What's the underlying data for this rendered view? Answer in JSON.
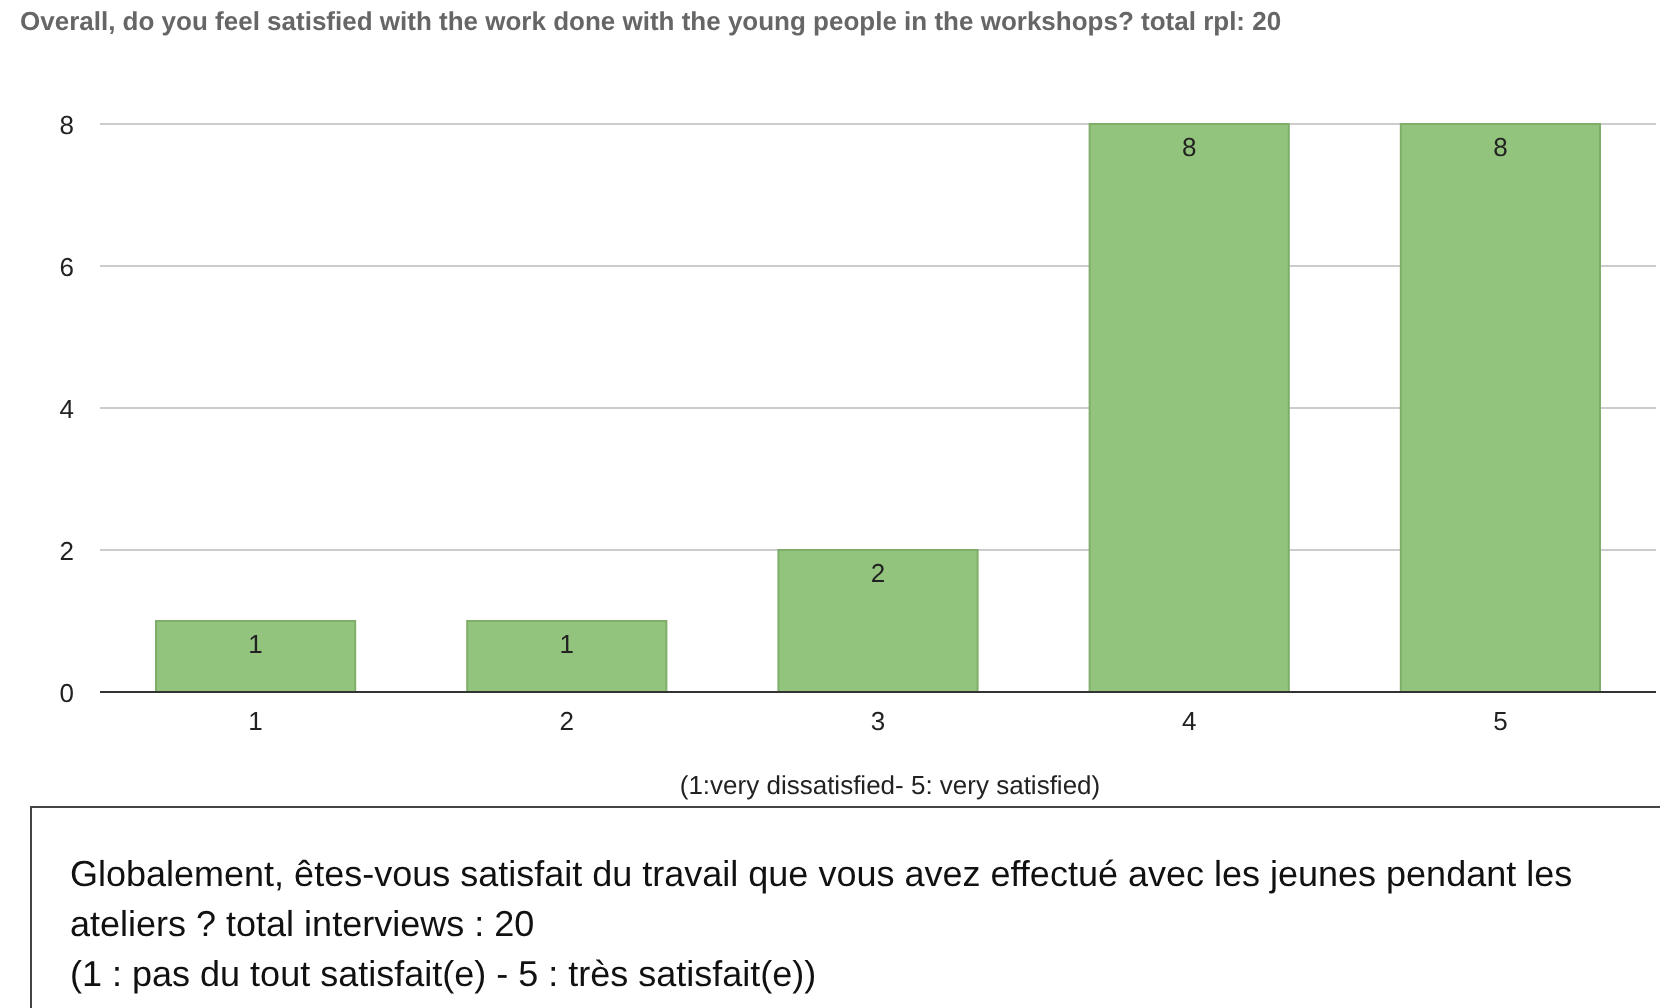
{
  "chart_data": {
    "type": "bar",
    "title": "Overall, do you feel satisfied with the work done with the young people in the workshops? total rpl: 20",
    "xlabel": "(1:very dissatisfied- 5: very satisfied)",
    "categories": [
      "1",
      "2",
      "3",
      "4",
      "5"
    ],
    "values": [
      1,
      1,
      2,
      8,
      8
    ],
    "color": "#93c47d",
    "ylim": [
      0,
      8
    ],
    "yticks": [
      0,
      2,
      4,
      6,
      8
    ],
    "grid": "y",
    "data_labels": true,
    "annotations": [
      "Globalement, êtes-vous satisfait du travail que vous avez effectué avec les jeunes pendant les ateliers ? total interviews : 20",
      "(1 : pas du tout satisfait(e) - 5 : très satisfait(e))"
    ]
  }
}
